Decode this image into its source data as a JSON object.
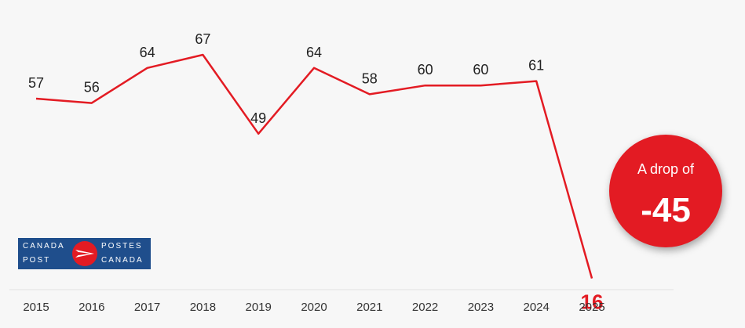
{
  "chart_data": {
    "type": "line",
    "x": [
      "2015",
      "2016",
      "2017",
      "2018",
      "2019",
      "2020",
      "2021",
      "2022",
      "2023",
      "2024",
      "2025"
    ],
    "values": [
      57,
      56,
      64,
      67,
      49,
      64,
      58,
      60,
      60,
      61,
      16
    ],
    "highlight_index": 10,
    "line_color": "#e31b23",
    "grid": false
  },
  "callout": {
    "text": "A drop of",
    "value": "-45",
    "color": "#e31b23"
  },
  "logo": {
    "top_left": "CANADA",
    "top_right": "POSTES",
    "bottom_left": "POST",
    "bottom_right": "CANADA",
    "color": "#1f4e8c"
  }
}
